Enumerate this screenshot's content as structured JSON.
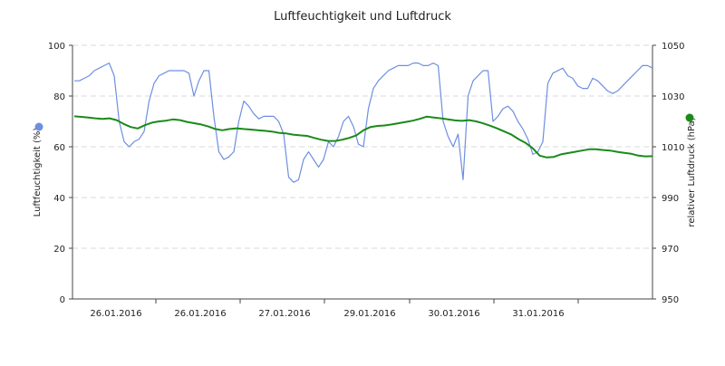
{
  "chart_data": {
    "type": "line",
    "title": "Luftfeuchtigkeit und Luftdruck",
    "xlabel": "",
    "x_tick_labels": [
      "26.01.2016",
      "26.01.2016",
      "27.01.2016",
      "29.01.2016",
      "30.01.2016",
      "31.01.2016"
    ],
    "left_axis": {
      "label": "Luftfeuchtigkeit (%)",
      "ylim": [
        0,
        100
      ],
      "ticks": [
        0,
        20,
        40,
        60,
        80,
        100
      ]
    },
    "right_axis": {
      "label": "relativer Luftdruck (hPa)",
      "ylim": [
        950,
        1050
      ],
      "ticks": [
        950,
        970,
        990,
        1010,
        1030,
        1050
      ]
    },
    "grid": true,
    "legend": "none",
    "series": [
      {
        "axis": "left",
        "color": "#6d8fe0",
        "values": [
          86,
          86,
          87,
          88,
          90,
          91,
          92,
          93,
          88,
          70,
          62,
          60,
          62,
          63,
          66,
          78,
          85,
          88,
          89,
          90,
          90,
          90,
          90,
          89,
          80,
          86,
          90,
          90,
          72,
          58,
          55,
          56,
          58,
          70,
          78,
          76,
          73,
          71,
          72,
          72,
          72,
          70,
          65,
          48,
          46,
          47,
          55,
          58,
          55,
          52,
          55,
          62,
          60,
          64,
          70,
          72,
          68,
          61,
          60,
          75,
          83,
          86,
          88,
          90,
          91,
          92,
          92,
          92,
          93,
          93,
          92,
          92,
          93,
          92,
          70,
          64,
          60,
          65,
          47,
          80,
          86,
          88,
          90,
          90,
          70,
          72,
          75,
          76,
          74,
          70,
          67,
          63,
          57,
          58,
          62,
          85,
          89,
          90,
          91,
          88,
          87,
          84,
          83,
          83,
          87,
          86,
          84,
          82,
          81,
          82,
          84,
          86,
          88,
          90,
          92,
          92,
          91
        ]
      },
      {
        "axis": "right",
        "color": "#1a8a1a",
        "values": [
          1022,
          1021.8,
          1021.5,
          1021.2,
          1021,
          1021.2,
          1020.5,
          1019,
          1017.8,
          1017.2,
          1018.5,
          1019.5,
          1020,
          1020.3,
          1020.8,
          1020.5,
          1019.8,
          1019.3,
          1018.8,
          1018,
          1017,
          1016.5,
          1017,
          1017.3,
          1017,
          1016.8,
          1016.5,
          1016.3,
          1016,
          1015.5,
          1015.3,
          1014.8,
          1014.5,
          1014.3,
          1013.5,
          1012.8,
          1012.3,
          1012.3,
          1012.8,
          1013.5,
          1014.5,
          1016.5,
          1017.8,
          1018.2,
          1018.4,
          1018.8,
          1019.3,
          1019.8,
          1020.3,
          1021,
          1021.9,
          1021.5,
          1021.2,
          1020.8,
          1020.4,
          1020.2,
          1020.5,
          1020,
          1019.2,
          1018.3,
          1017.2,
          1016,
          1014.8,
          1013,
          1011.5,
          1009.5,
          1006.5,
          1005.8,
          1006,
          1007,
          1007.5,
          1008,
          1008.5,
          1009,
          1009,
          1008.7,
          1008.5,
          1008,
          1007.6,
          1007.2,
          1006.5,
          1006.2,
          1006.3
        ]
      }
    ]
  }
}
